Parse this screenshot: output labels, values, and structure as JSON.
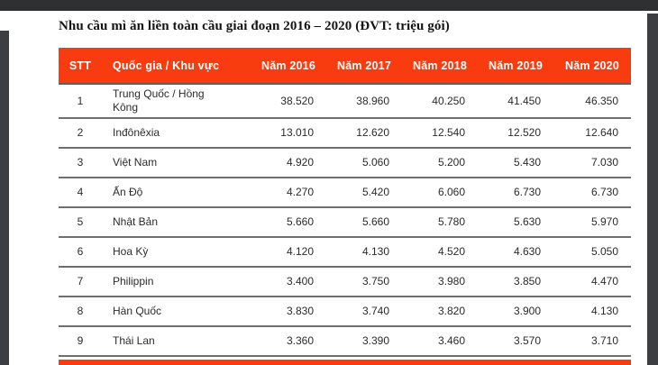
{
  "document": {
    "title": "Nhu cầu mì ăn liền toàn cầu giai đoạn 2016 – 2020 (ĐVT: triệu gói)"
  },
  "colors": {
    "accent_header": "#F93B10",
    "chrome_bar": "#2E3032",
    "viewer_background": "#3D3E41",
    "row_border": "#6F6F6F"
  },
  "table": {
    "columns": [
      "STT",
      "Quốc gia / Khu vực",
      "Năm 2016",
      "Năm 2017",
      "Năm 2018",
      "Năm 2019",
      "Năm 2020"
    ],
    "rows": [
      {
        "stt": "1",
        "region": "Trung Quốc / Hồng Kông",
        "values": [
          "38.520",
          "38.960",
          "40.250",
          "41.450",
          "46.350"
        ]
      },
      {
        "stt": "2",
        "region": "Inđônêxia",
        "values": [
          "13.010",
          "12.620",
          "12.540",
          "12.520",
          "12.640"
        ]
      },
      {
        "stt": "3",
        "region": "Việt Nam",
        "values": [
          "4.920",
          "5.060",
          "5.200",
          "5.430",
          "7.030"
        ]
      },
      {
        "stt": "4",
        "region": "Ấn Độ",
        "values": [
          "4.270",
          "5.420",
          "6.060",
          "6.730",
          "6.730"
        ]
      },
      {
        "stt": "5",
        "region": "Nhật Bản",
        "values": [
          "5.660",
          "5.660",
          "5.780",
          "5.630",
          "5.970"
        ]
      },
      {
        "stt": "6",
        "region": "Hoa Kỳ",
        "values": [
          "4.120",
          "4.130",
          "4.520",
          "4.630",
          "5.050"
        ]
      },
      {
        "stt": "7",
        "region": "Philippin",
        "values": [
          "3.400",
          "3.750",
          "3.980",
          "3.850",
          "4.470"
        ]
      },
      {
        "stt": "8",
        "region": "Hàn Quốc",
        "values": [
          "3.830",
          "3.740",
          "3.820",
          "3.900",
          "4.130"
        ]
      },
      {
        "stt": "9",
        "region": "Thái Lan",
        "values": [
          "3.360",
          "3.390",
          "3.460",
          "3.570",
          "3.710"
        ]
      }
    ]
  }
}
